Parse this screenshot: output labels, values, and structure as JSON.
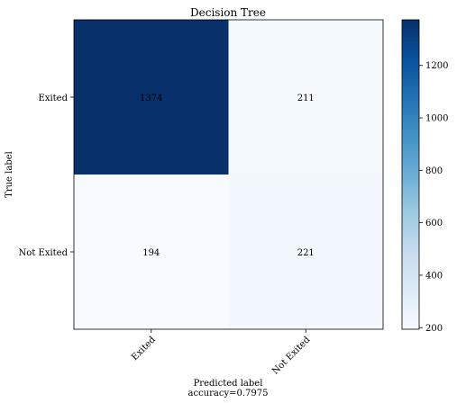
{
  "chart_data": {
    "type": "heatmap",
    "title": "Decision Tree",
    "xlabel": "Predicted label",
    "xlabel_sub": "accuracy=0.7975",
    "ylabel": "True label",
    "x_categories": [
      "Exited",
      "Not Exited"
    ],
    "y_categories": [
      "Exited",
      "Not Exited"
    ],
    "values": [
      [
        1374,
        211
      ],
      [
        194,
        221
      ]
    ],
    "colormap": "Blues",
    "colorbar": {
      "range": [
        194,
        1374
      ],
      "ticks": [
        200,
        400,
        600,
        800,
        1000,
        1200
      ]
    },
    "grid": false
  }
}
